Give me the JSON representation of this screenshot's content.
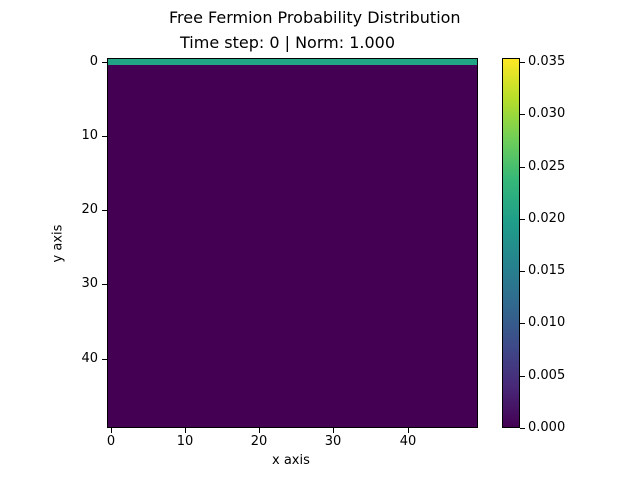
{
  "chart_data": {
    "type": "heatmap",
    "title": "Free Fermion Probability Distribution",
    "subtitle": "Time step: 0 | Norm: 1.000",
    "xlabel": "x axis",
    "ylabel": "y axis",
    "grid_shape": [
      50,
      50
    ],
    "x_ticks": [
      0,
      10,
      20,
      30,
      40
    ],
    "y_ticks": [
      0,
      10,
      20,
      30,
      40
    ],
    "xlim": [
      -0.5,
      49.5
    ],
    "ylim": [
      49.5,
      -0.5
    ],
    "description": "Row y=0 has uniform value 0.02 across all 50 x columns; all other cells are 0.0",
    "nonzero_rows": [
      {
        "y": 0,
        "value": 0.02
      }
    ],
    "background_value": 0.0,
    "colormap": "viridis",
    "colorbar": {
      "ticks": [
        "0.000",
        "0.005",
        "0.010",
        "0.015",
        "0.020",
        "0.025",
        "0.030",
        "0.035"
      ],
      "range": [
        0.0,
        0.0354
      ]
    },
    "grid": false
  },
  "colors": {
    "low": "#440154",
    "row0": "#21a585",
    "high": "#fde725"
  }
}
